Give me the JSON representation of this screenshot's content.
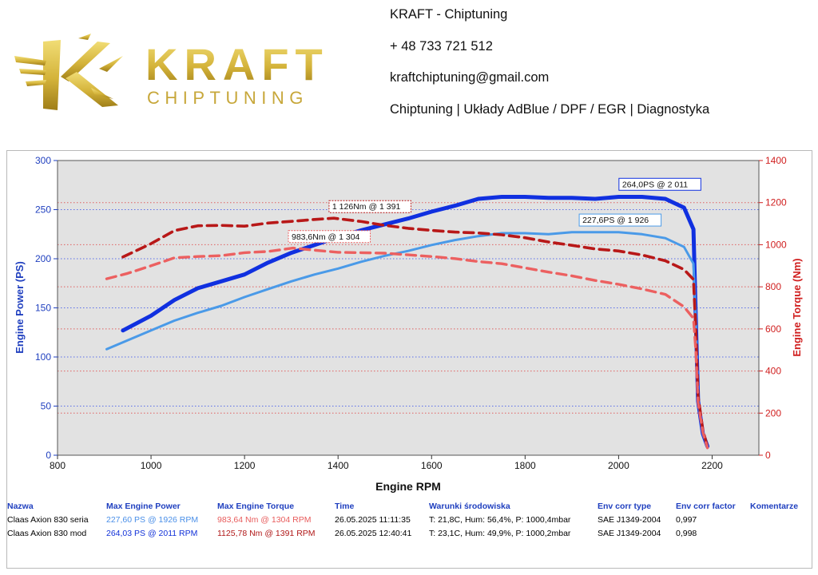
{
  "brand": {
    "logo_text": "KRAFT",
    "logo_subtext": "CHIPTUNING",
    "colors": {
      "gold_light": "#e8cf5a",
      "gold_dark": "#a8861c"
    }
  },
  "contact": {
    "company": "KRAFT - Chiptuning",
    "phone": "+ 48 733 721 512",
    "email": "kraftchiptuning@gmail.com",
    "services": "Chiptuning | Układy AdBlue / DPF / EGR | Diagnostyka"
  },
  "chart_data": {
    "type": "line",
    "xlabel": "Engine RPM",
    "ylabel_left": "Engine Power (PS)",
    "ylabel_right": "Engine Torque (Nm)",
    "xlim": [
      800,
      2300
    ],
    "ylim_left": [
      0,
      300
    ],
    "ylim_right": [
      0,
      1400
    ],
    "x_ticks": [
      800,
      1000,
      1200,
      1400,
      1600,
      1800,
      2000,
      2200
    ],
    "y_ticks_left": [
      0,
      50,
      100,
      150,
      200,
      250,
      300
    ],
    "y_ticks_right": [
      0,
      200,
      400,
      600,
      800,
      1000,
      1200,
      1400
    ],
    "grid": true,
    "colors": {
      "power_mod": "#1030e0",
      "power_stock": "#4a9ae8",
      "torque_mod": "#b81818",
      "torque_stock": "#ec6060",
      "plot_bg": "#e2e2e2",
      "axis_left": "#1f3fbf",
      "axis_right": "#d01f1f"
    },
    "series": [
      {
        "axis": "left",
        "style": "solid-thick",
        "color_key": "power_mod",
        "points": [
          [
            940,
            127
          ],
          [
            1000,
            142
          ],
          [
            1050,
            158
          ],
          [
            1100,
            170
          ],
          [
            1150,
            177
          ],
          [
            1200,
            184
          ],
          [
            1250,
            196
          ],
          [
            1300,
            206
          ],
          [
            1350,
            214
          ],
          [
            1400,
            222
          ],
          [
            1450,
            229
          ],
          [
            1500,
            235
          ],
          [
            1550,
            241
          ],
          [
            1600,
            248
          ],
          [
            1650,
            254
          ],
          [
            1700,
            261
          ],
          [
            1750,
            263
          ],
          [
            1800,
            263
          ],
          [
            1850,
            262
          ],
          [
            1900,
            262
          ],
          [
            1950,
            261
          ],
          [
            2000,
            263
          ],
          [
            2050,
            263
          ],
          [
            2100,
            261
          ],
          [
            2140,
            252
          ],
          [
            2160,
            230
          ],
          [
            2165,
            140
          ],
          [
            2170,
            55
          ],
          [
            2180,
            22
          ],
          [
            2190,
            9
          ]
        ]
      },
      {
        "axis": "left",
        "style": "solid",
        "color_key": "power_stock",
        "points": [
          [
            905,
            108
          ],
          [
            950,
            117
          ],
          [
            1000,
            127
          ],
          [
            1050,
            137
          ],
          [
            1100,
            145
          ],
          [
            1150,
            152
          ],
          [
            1200,
            161
          ],
          [
            1250,
            169
          ],
          [
            1300,
            177
          ],
          [
            1350,
            184
          ],
          [
            1400,
            190
          ],
          [
            1450,
            197
          ],
          [
            1500,
            203
          ],
          [
            1550,
            208
          ],
          [
            1600,
            214
          ],
          [
            1650,
            219
          ],
          [
            1700,
            223
          ],
          [
            1750,
            226
          ],
          [
            1800,
            226
          ],
          [
            1850,
            225
          ],
          [
            1900,
            227
          ],
          [
            1950,
            227
          ],
          [
            2000,
            227
          ],
          [
            2050,
            225
          ],
          [
            2100,
            221
          ],
          [
            2140,
            212
          ],
          [
            2160,
            195
          ],
          [
            2165,
            140
          ],
          [
            2170,
            55
          ],
          [
            2180,
            22
          ],
          [
            2190,
            9
          ]
        ]
      },
      {
        "axis": "right",
        "style": "dashed-thick",
        "color_key": "torque_mod",
        "points": [
          [
            940,
            942
          ],
          [
            1000,
            1005
          ],
          [
            1050,
            1067
          ],
          [
            1100,
            1090
          ],
          [
            1150,
            1092
          ],
          [
            1200,
            1088
          ],
          [
            1250,
            1103
          ],
          [
            1300,
            1111
          ],
          [
            1350,
            1120
          ],
          [
            1391,
            1126
          ],
          [
            1450,
            1110
          ],
          [
            1500,
            1092
          ],
          [
            1550,
            1078
          ],
          [
            1600,
            1068
          ],
          [
            1650,
            1060
          ],
          [
            1700,
            1056
          ],
          [
            1750,
            1047
          ],
          [
            1800,
            1033
          ],
          [
            1850,
            1013
          ],
          [
            1900,
            997
          ],
          [
            1950,
            980
          ],
          [
            2000,
            970
          ],
          [
            2050,
            951
          ],
          [
            2100,
            924
          ],
          [
            2140,
            882
          ],
          [
            2160,
            835
          ],
          [
            2165,
            600
          ],
          [
            2170,
            280
          ],
          [
            2180,
            120
          ],
          [
            2190,
            40
          ]
        ]
      },
      {
        "axis": "right",
        "style": "dashed",
        "color_key": "torque_stock",
        "points": [
          [
            905,
            838
          ],
          [
            950,
            864
          ],
          [
            1000,
            900
          ],
          [
            1050,
            938
          ],
          [
            1100,
            944
          ],
          [
            1150,
            948
          ],
          [
            1200,
            962
          ],
          [
            1250,
            968
          ],
          [
            1304,
            984
          ],
          [
            1350,
            974
          ],
          [
            1400,
            964
          ],
          [
            1450,
            962
          ],
          [
            1500,
            960
          ],
          [
            1550,
            952
          ],
          [
            1600,
            944
          ],
          [
            1650,
            934
          ],
          [
            1700,
            920
          ],
          [
            1750,
            910
          ],
          [
            1800,
            890
          ],
          [
            1850,
            870
          ],
          [
            1900,
            852
          ],
          [
            1950,
            830
          ],
          [
            2000,
            812
          ],
          [
            2050,
            790
          ],
          [
            2100,
            764
          ],
          [
            2140,
            705
          ],
          [
            2160,
            650
          ],
          [
            2165,
            500
          ],
          [
            2170,
            250
          ],
          [
            2180,
            110
          ],
          [
            2190,
            35
          ]
        ]
      }
    ],
    "annotations": [
      {
        "text": "264,0PS @ 2 011",
        "x": 2011,
        "y": 264,
        "axis": "left",
        "color_key": "power_mod"
      },
      {
        "text": "227,6PS @ 1 926",
        "x": 1926,
        "y": 227.6,
        "axis": "left",
        "color_key": "power_stock"
      },
      {
        "text": "1 126Nm @ 1 391",
        "x": 1391,
        "y": 1126,
        "axis": "right",
        "color_key": "torque_mod"
      },
      {
        "text": "983,6Nm @ 1 304",
        "x": 1304,
        "y": 983.6,
        "axis": "right",
        "color_key": "torque_stock"
      }
    ]
  },
  "table": {
    "headers": [
      "Nazwa",
      "Max Engine Power",
      "Max Engine Torque",
      "Time",
      "Warunki środowiska",
      "Env corr type",
      "Env corr factor",
      "Komentarze"
    ],
    "rows": [
      {
        "name": "Claas Axion 830 seria",
        "power": "227,60 PS @ 1926 RPM",
        "torque": "983,64 Nm @ 1304 RPM",
        "time": "26.05.2025 11:11:35",
        "env": "T: 21,8C, Hum: 56,4%, P: 1000,4mbar",
        "corr_type": "SAE J1349-2004",
        "corr_factor": "0,997",
        "comment": ""
      },
      {
        "name": "Claas Axion 830 mod",
        "power": "264,03 PS @ 2011 RPM",
        "torque": "1125,78 Nm @ 1391 RPM",
        "time": "26.05.2025 12:40:41",
        "env": "T: 23,1C, Hum: 49,9%, P: 1000,2mbar",
        "corr_type": "SAE J1349-2004",
        "corr_factor": "0,998",
        "comment": ""
      }
    ]
  }
}
